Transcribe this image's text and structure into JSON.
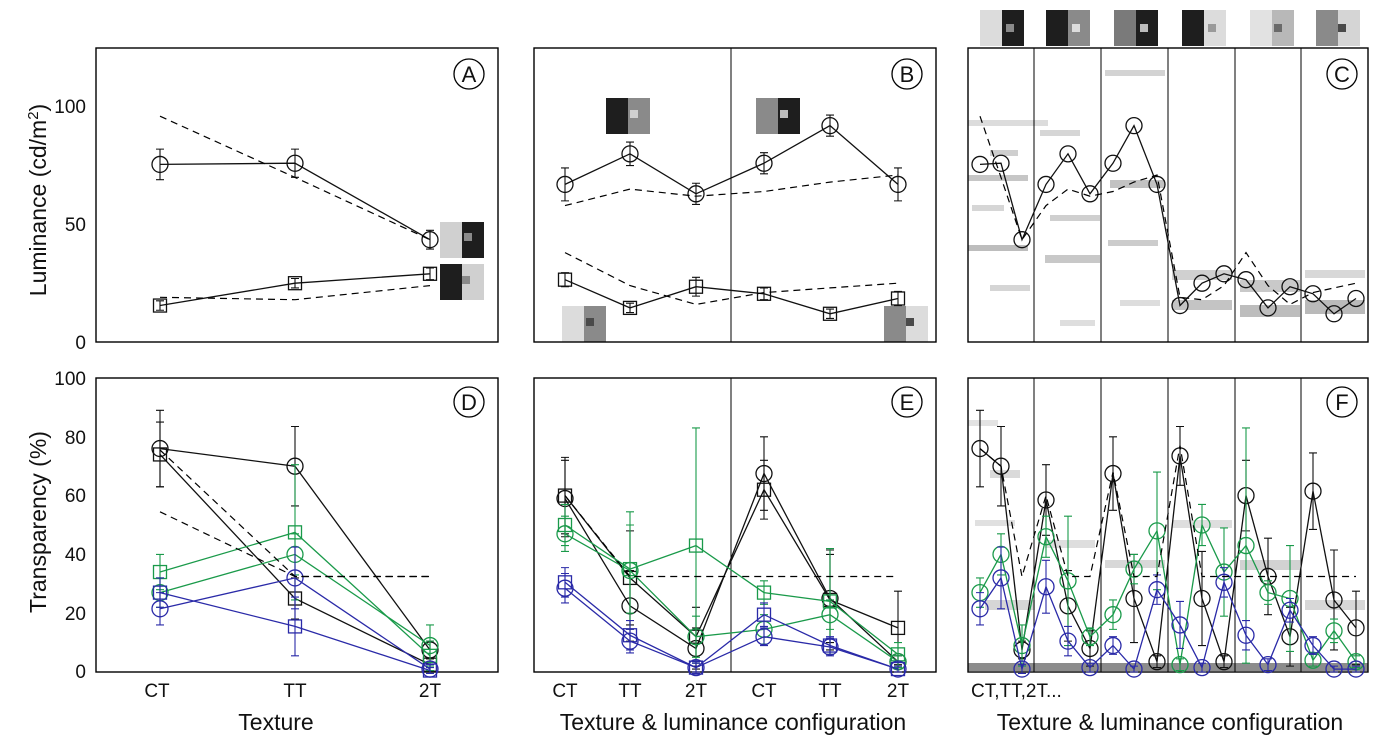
{
  "colors": {
    "black": "#111111",
    "green": "#1a9a4a",
    "blue": "#2a2aa8"
  },
  "chart_data": [
    {
      "panel": "A",
      "type": "line",
      "categories": [
        "CT",
        "TT",
        "2T"
      ],
      "ylabel": "Luminance (cd/m2)",
      "ylim": [
        0,
        125
      ],
      "yticks": [
        0,
        50,
        100
      ],
      "series": [
        {
          "marker": "circle",
          "style": "solid",
          "values": [
            75.5,
            76,
            43.5
          ],
          "err": [
            6.5,
            6,
            4
          ]
        },
        {
          "marker": "square",
          "style": "solid",
          "values": [
            15.5,
            25,
            29
          ],
          "err": [
            2,
            2,
            2.5
          ]
        },
        {
          "style": "dashed",
          "values": [
            96,
            70,
            43.5
          ]
        },
        {
          "style": "dashed",
          "values": [
            19,
            18,
            24
          ]
        }
      ]
    },
    {
      "panel": "B",
      "type": "line",
      "categories": [
        "CT",
        "TT",
        "2T",
        "CT",
        "TT",
        "2T"
      ],
      "ylim": [
        0,
        125
      ],
      "series": [
        {
          "marker": "circle",
          "style": "solid",
          "values": [
            67,
            80,
            63,
            76,
            92,
            67
          ],
          "err": [
            7,
            5,
            4.5,
            4.5,
            4.5,
            7
          ]
        },
        {
          "marker": "square",
          "style": "solid",
          "values": [
            26.5,
            14.5,
            23.5,
            20.5,
            12,
            18.5
          ],
          "err": [
            3,
            2,
            4,
            2.5,
            2,
            3
          ]
        },
        {
          "style": "dashed",
          "values": [
            58,
            65,
            62,
            64,
            68,
            71
          ]
        },
        {
          "style": "dashed",
          "values": [
            38,
            24,
            16,
            21,
            23,
            25
          ]
        }
      ]
    },
    {
      "panel": "C",
      "type": "line",
      "ylim": [
        0,
        125
      ],
      "series": [
        {
          "marker": "circle",
          "style": "solid",
          "values": [
            75.5,
            76,
            43.5,
            67,
            80,
            63,
            76,
            92,
            67,
            15.5,
            25,
            29,
            26.5,
            14.5,
            23.5,
            20.5,
            12,
            18.5
          ]
        },
        {
          "style": "dashed",
          "values": [
            96,
            70,
            43.5,
            58,
            65,
            62,
            64,
            68,
            71,
            19,
            18,
            24,
            38,
            24,
            16,
            21,
            23,
            25
          ]
        }
      ]
    },
    {
      "panel": "D",
      "type": "line",
      "categories": [
        "CT",
        "TT",
        "2T"
      ],
      "xlabel": "Texture",
      "ylabel": "Transparency (%)",
      "ylim": [
        0,
        100
      ],
      "yticks": [
        0,
        20,
        40,
        60,
        80,
        100
      ],
      "series": [
        {
          "color": "black",
          "marker": "circle",
          "values": [
            76,
            70,
            7.5
          ],
          "err": [
            13,
            13.5,
            3
          ]
        },
        {
          "color": "black",
          "marker": "square",
          "values": [
            74,
            25,
            2.5
          ],
          "err": [
            11,
            7,
            2
          ]
        },
        {
          "color": "green",
          "marker": "circle",
          "values": [
            27,
            40,
            9
          ],
          "err": [
            5,
            7,
            7
          ]
        },
        {
          "color": "green",
          "marker": "square",
          "values": [
            34,
            47.5,
            5.5
          ],
          "err": [
            6,
            23,
            5
          ]
        },
        {
          "color": "blue",
          "marker": "circle",
          "values": [
            21.5,
            32,
            1
          ],
          "err": [
            5.5,
            10.5,
            1.5
          ]
        },
        {
          "color": "blue",
          "marker": "square",
          "values": [
            27,
            15.5,
            0.5
          ],
          "err": [
            5,
            10,
            1
          ]
        },
        {
          "style": "dashed",
          "values": [
            75.5,
            32.5,
            32.5
          ]
        },
        {
          "style": "dashed",
          "values": [
            54.5,
            32.5,
            32.5
          ]
        }
      ]
    },
    {
      "panel": "E",
      "type": "line",
      "categories": [
        "CT",
        "TT",
        "2T",
        "CT",
        "TT",
        "2T"
      ],
      "xlabel": "Texture & luminance configuration",
      "ylim": [
        0,
        100
      ],
      "series": [
        {
          "color": "black",
          "marker": "circle",
          "values": [
            59,
            22.5,
            8,
            67.5,
            25,
            3.5
          ],
          "err": [
            13,
            12,
            7,
            12.5,
            15,
            2
          ]
        },
        {
          "color": "black",
          "marker": "square",
          "values": [
            60,
            32,
            12,
            62,
            24.5,
            15
          ],
          "err": [
            13,
            16,
            10,
            10,
            17,
            12.5
          ]
        },
        {
          "color": "green",
          "marker": "circle",
          "values": [
            47,
            34.5,
            12,
            14.5,
            19.5,
            3.5
          ],
          "err": [
            6,
            20,
            7,
            5,
            5,
            2
          ]
        },
        {
          "color": "green",
          "marker": "square",
          "values": [
            50,
            35,
            43,
            27,
            24,
            6
          ],
          "err": [
            7,
            15,
            40,
            4,
            18,
            4
          ]
        },
        {
          "color": "blue",
          "marker": "circle",
          "values": [
            28.5,
            10.5,
            1.5,
            12,
            8.5,
            1
          ],
          "err": [
            5,
            4,
            1.5,
            3,
            3,
            1
          ]
        },
        {
          "color": "blue",
          "marker": "square",
          "values": [
            30.5,
            12.5,
            1.5,
            19.5,
            9,
            1
          ],
          "err": [
            5,
            5,
            2,
            4,
            3,
            1
          ]
        },
        {
          "style": "dashed",
          "values": [
            60,
            32.5,
            32.5,
            32.5,
            32.5,
            32.5
          ]
        }
      ]
    },
    {
      "panel": "F",
      "type": "line",
      "xticklabel": "CT,TT,2T...",
      "xlabel": "Texture & luminance configuration",
      "ylim": [
        0,
        100
      ],
      "series": [
        {
          "color": "black",
          "marker": "circle",
          "values": [
            76,
            70,
            7.5,
            58.5,
            22.5,
            8,
            67.5,
            25,
            3.5,
            73.5,
            25,
            3.5,
            60,
            32.5,
            12,
            61.5,
            24.5,
            15
          ],
          "err": [
            13,
            13.5,
            3,
            12,
            12,
            6,
            12.5,
            15,
            2,
            10,
            16,
            2,
            12,
            13,
            10,
            13,
            17,
            12.5
          ]
        },
        {
          "color": "green",
          "marker": "circle",
          "values": [
            27,
            40,
            9,
            46,
            31,
            12,
            19.5,
            35,
            48,
            2.5,
            50,
            34,
            43,
            27,
            25,
            4,
            14,
            3.5
          ],
          "err": [
            5,
            7,
            7,
            7,
            22,
            3,
            5,
            5,
            20,
            2,
            7,
            15,
            40,
            4,
            18,
            2,
            4,
            2
          ]
        },
        {
          "color": "blue",
          "marker": "circle",
          "values": [
            21.5,
            32,
            1,
            29,
            10.5,
            1.5,
            9,
            1,
            28,
            16,
            1.5,
            30.5,
            12.5,
            2.5,
            21,
            9,
            1,
            1
          ],
          "err": [
            5.5,
            10.5,
            1.5,
            9,
            5,
            1.5,
            3,
            1,
            5,
            8,
            1.5,
            5,
            5,
            2,
            4,
            3,
            1,
            1
          ]
        },
        {
          "style": "dashed",
          "values": [
            76,
            70,
            32.5,
            60,
            32.5,
            32.5,
            68,
            32.5,
            32.5,
            77,
            32.5,
            32.5,
            32.5,
            32.5,
            32.5,
            32.5,
            32.5,
            32.5
          ]
        }
      ]
    }
  ],
  "panel_letters": [
    "A",
    "B",
    "C",
    "D",
    "E",
    "F"
  ],
  "ytick_labels_top": [
    "0",
    "50",
    "100"
  ],
  "ytick_labels_bottom": [
    "0",
    "20",
    "40",
    "60",
    "80",
    "100"
  ],
  "xtick_labels": [
    "CT",
    "TT",
    "2T"
  ],
  "xtick_label_F": "CT,TT,2T...",
  "axis_labels": {
    "luminance_main": "Luminance (cd/m",
    "luminance_sup": "2",
    "luminance_close": ")",
    "transparency": "Transparency (%)",
    "texture": "Texture",
    "config": "Texture & luminance configuration"
  }
}
